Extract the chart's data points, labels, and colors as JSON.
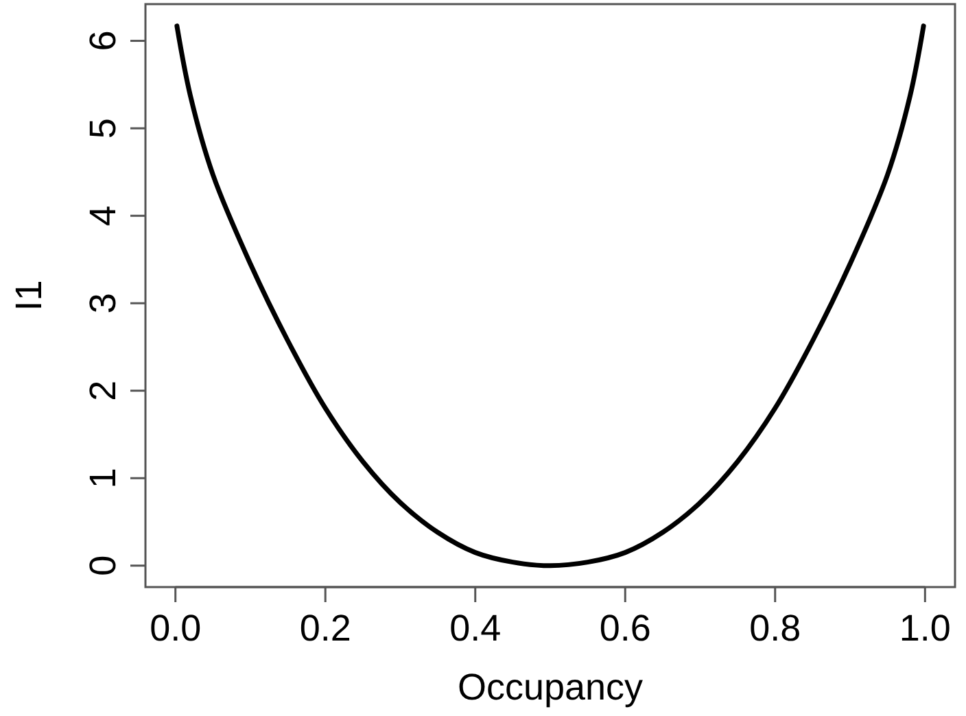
{
  "chart_data": {
    "type": "line",
    "xlabel": "Occupancy",
    "ylabel": "I1",
    "x": [
      0.002,
      0.02,
      0.05,
      0.1,
      0.15,
      0.2,
      0.25,
      0.3,
      0.35,
      0.4,
      0.45,
      0.5,
      0.55,
      0.6,
      0.65,
      0.7,
      0.75,
      0.8,
      0.85,
      0.9,
      0.95,
      0.98,
      0.998
    ],
    "series": [
      {
        "color": "#000000",
        "values": [
          6.17,
          5.37,
          4.47,
          3.45,
          2.57,
          1.8,
          1.19,
          0.72,
          0.38,
          0.15,
          0.04,
          0,
          0.04,
          0.15,
          0.38,
          0.72,
          1.19,
          1.8,
          2.57,
          3.45,
          4.47,
          5.37,
          6.17
        ]
      }
    ],
    "xlim": [
      -0.04,
      1.04
    ],
    "ylim": [
      -0.245,
      6.42
    ],
    "xticks": [
      {
        "value": 0,
        "label": "0.0"
      },
      0.2,
      0.4,
      0.6,
      0.8,
      {
        "value": 1,
        "label": "1.0"
      }
    ],
    "yticks": [
      0,
      1,
      2,
      3,
      4,
      5,
      6
    ],
    "grid": false,
    "marker": "none",
    "line_style": "solid"
  }
}
